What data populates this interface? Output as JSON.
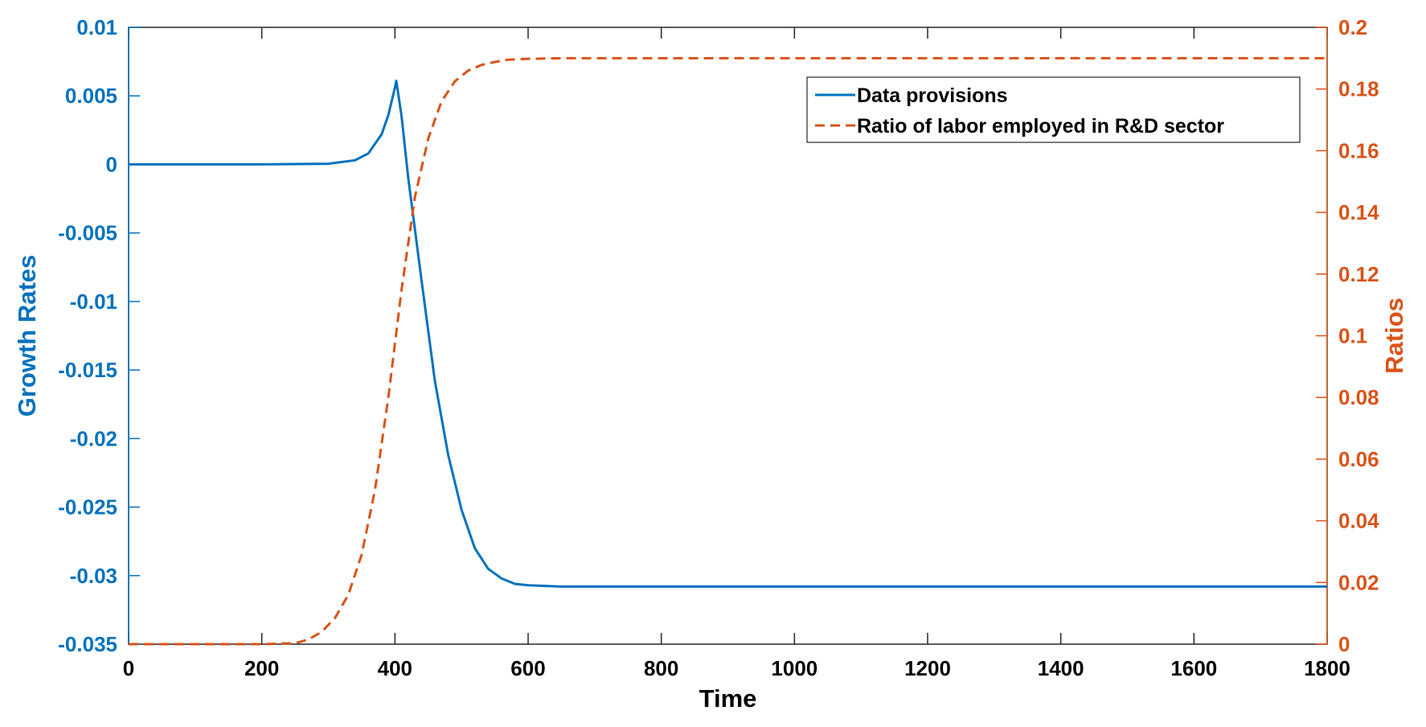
{
  "chart_data": {
    "type": "line",
    "xlabel": "Time",
    "ylabel_left": "Growth Rates",
    "ylabel_right": "Ratios",
    "xlim": [
      0,
      1800
    ],
    "ylim_left": [
      -0.035,
      0.01
    ],
    "ylim_right": [
      0,
      0.2
    ],
    "x_ticks": [
      "0",
      "200",
      "400",
      "600",
      "800",
      "1000",
      "1200",
      "1400",
      "1600",
      "1800"
    ],
    "y_left_ticks": [
      "0.01",
      "0.005",
      "0",
      "-0.005",
      "-0.01",
      "-0.015",
      "-0.02",
      "-0.025",
      "-0.03",
      "-0.035"
    ],
    "y_right_ticks": [
      "0.2",
      "0.18",
      "0.16",
      "0.14",
      "0.12",
      "0.1",
      "0.08",
      "0.06",
      "0.04",
      "0.02",
      "0"
    ],
    "grid": false,
    "legend_position": "top-right",
    "colors": {
      "left_axis": "#0072BD",
      "right_axis": "#D95319",
      "axes": "#262626"
    },
    "series": [
      {
        "name": "Data provisions",
        "axis": "left",
        "style": "solid",
        "color": "#0072BD",
        "x": [
          0,
          100,
          200,
          300,
          340,
          360,
          380,
          390,
          400,
          402,
          410,
          420,
          440,
          460,
          480,
          500,
          520,
          540,
          560,
          580,
          600,
          650,
          700,
          800,
          1000,
          1200,
          1400,
          1600,
          1800
        ],
        "y": [
          0,
          0,
          0,
          5e-05,
          0.0003,
          0.0008,
          0.0022,
          0.0036,
          0.0056,
          0.0061,
          0.0035,
          -0.001,
          -0.0085,
          -0.0158,
          -0.0212,
          -0.0252,
          -0.028,
          -0.0295,
          -0.0302,
          -0.0306,
          -0.0307,
          -0.0308,
          -0.0308,
          -0.0308,
          -0.0308,
          -0.0308,
          -0.0308,
          -0.0308,
          -0.0308
        ]
      },
      {
        "name": "Ratio of labor employed in R&D sector",
        "axis": "right",
        "style": "dashed",
        "color": "#D95319",
        "x": [
          0,
          100,
          200,
          250,
          270,
          290,
          310,
          330,
          350,
          370,
          390,
          410,
          430,
          450,
          470,
          490,
          510,
          530,
          550,
          570,
          600,
          650,
          700,
          800,
          1000,
          1200,
          1400,
          1600,
          1800
        ],
        "y": [
          0,
          0,
          0,
          0.0003,
          0.0015,
          0.004,
          0.0085,
          0.016,
          0.029,
          0.05,
          0.08,
          0.115,
          0.145,
          0.164,
          0.176,
          0.1825,
          0.186,
          0.1878,
          0.1888,
          0.1895,
          0.1898,
          0.19,
          0.19,
          0.19,
          0.19,
          0.19,
          0.19,
          0.19,
          0.19
        ]
      }
    ]
  }
}
